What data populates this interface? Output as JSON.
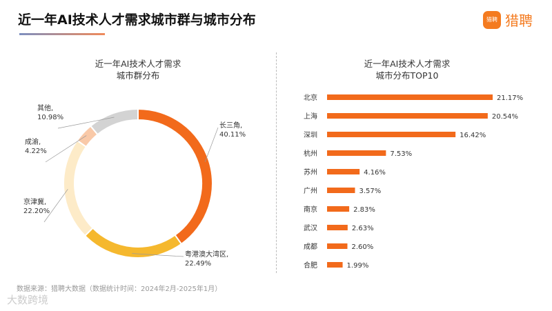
{
  "header": {
    "title": "近一年AI技术人才需求城市群与城市分布",
    "logo_text": "猎聘",
    "logo_icon_text": "猎聘"
  },
  "footer": {
    "source": "数据来源：猎聘大数据（数据统计时间：2024年2月-2025年1月）",
    "watermark": "大数跨境"
  },
  "chart_data": [
    {
      "type": "pie",
      "title": [
        "近一年AI技术人才需求",
        "城市群分布"
      ],
      "donut": true,
      "categories": [
        "长三角",
        "粤港澳大湾区",
        "京津冀",
        "成渝",
        "其他"
      ],
      "values": [
        40.11,
        22.49,
        22.2,
        4.22,
        10.98
      ],
      "labels": [
        "40.11%",
        "22.49%",
        "22.20%",
        "4.22%",
        "10.98%"
      ],
      "colors": [
        "#f26a1b",
        "#f5b82e",
        "#fdebc8",
        "#f9c9a8",
        "#d3d3d3"
      ]
    },
    {
      "type": "bar",
      "orientation": "horizontal",
      "title": [
        "近一年AI技术人才需求",
        "城市分布TOP10"
      ],
      "categories": [
        "北京",
        "上海",
        "深圳",
        "杭州",
        "苏州",
        "广州",
        "南京",
        "武汉",
        "成都",
        "合肥"
      ],
      "values": [
        21.17,
        20.54,
        16.42,
        7.53,
        4.16,
        3.57,
        2.83,
        2.63,
        2.6,
        1.99
      ],
      "labels": [
        "21.17%",
        "20.54%",
        "16.42%",
        "7.53%",
        "4.16%",
        "3.57%",
        "2.83%",
        "2.63%",
        "2.60%",
        "1.99%"
      ],
      "color": "#f26a1b"
    }
  ]
}
